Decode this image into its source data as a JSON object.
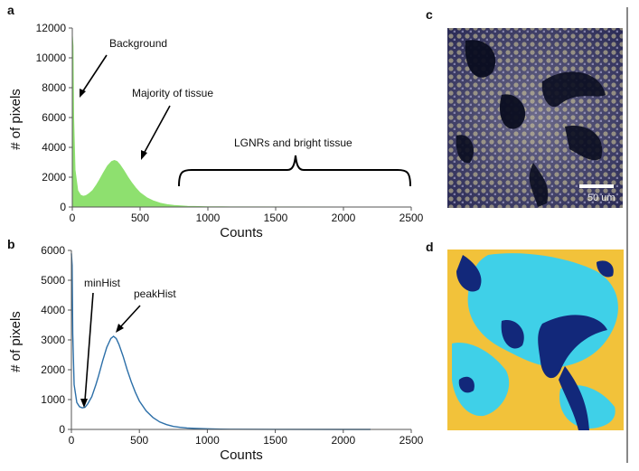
{
  "panels": {
    "a": "a",
    "b": "b",
    "c": "c",
    "d": "d"
  },
  "chart_data": [
    {
      "type": "area",
      "panel": "a",
      "xlabel": "Counts",
      "ylabel": "# of pixels",
      "xlim": [
        0,
        2500
      ],
      "ylim": [
        0,
        12000
      ],
      "xticks": [
        "0",
        "500",
        "1000",
        "1500",
        "2000",
        "2500"
      ],
      "yticks": [
        "0",
        "2000",
        "4000",
        "6000",
        "8000",
        "10000",
        "12000"
      ],
      "x": [
        0,
        5,
        10,
        20,
        40,
        60,
        80,
        100,
        120,
        150,
        180,
        200,
        230,
        260,
        290,
        310,
        330,
        350,
        380,
        410,
        440,
        470,
        500,
        550,
        600,
        650,
        700,
        750,
        800,
        850,
        900,
        1000,
        1100,
        1200,
        2500
      ],
      "y": [
        11500,
        10800,
        6000,
        2500,
        1100,
        800,
        720,
        760,
        870,
        1100,
        1500,
        1800,
        2300,
        2750,
        3050,
        3120,
        3050,
        2850,
        2450,
        2000,
        1600,
        1250,
        950,
        620,
        400,
        250,
        160,
        100,
        70,
        50,
        35,
        20,
        10,
        5,
        0
      ],
      "color": "#8ee06f",
      "annotations": {
        "background": "Background",
        "majority": "Majority of tissue",
        "bright": "LGNRs and bright tissue"
      }
    },
    {
      "type": "line",
      "panel": "b",
      "xlabel": "Counts",
      "ylabel": "# of pixels",
      "xlim": [
        0,
        2500
      ],
      "ylim": [
        0,
        6000
      ],
      "xticks": [
        "0",
        "500",
        "1000",
        "1500",
        "2000",
        "2500"
      ],
      "yticks": [
        "0",
        "1000",
        "2000",
        "3000",
        "4000",
        "5000",
        "6000"
      ],
      "x": [
        0,
        5,
        10,
        20,
        40,
        60,
        80,
        100,
        120,
        150,
        180,
        200,
        230,
        260,
        290,
        310,
        330,
        350,
        380,
        410,
        440,
        470,
        500,
        550,
        600,
        650,
        700,
        750,
        800,
        850,
        900,
        1000,
        1100,
        1200,
        1500,
        2000,
        2200
      ],
      "y": [
        5900,
        5500,
        3200,
        1500,
        900,
        760,
        720,
        740,
        850,
        1100,
        1500,
        1800,
        2300,
        2750,
        3050,
        3120,
        3050,
        2850,
        2450,
        2000,
        1600,
        1250,
        950,
        620,
        400,
        250,
        160,
        100,
        70,
        50,
        35,
        20,
        10,
        5,
        2,
        1,
        0
      ],
      "color": "#2c6fa8",
      "annotations": {
        "minHist": "minHist",
        "peakHist": "peakHist"
      }
    }
  ],
  "image_c": {
    "scale_label": "50 um"
  },
  "colors": {
    "area_fill": "#8ee06f",
    "line": "#2c6fa8",
    "seg_yellow": "#f2c23a",
    "seg_cyan": "#3fd0e8",
    "seg_navy": "#12287a"
  }
}
